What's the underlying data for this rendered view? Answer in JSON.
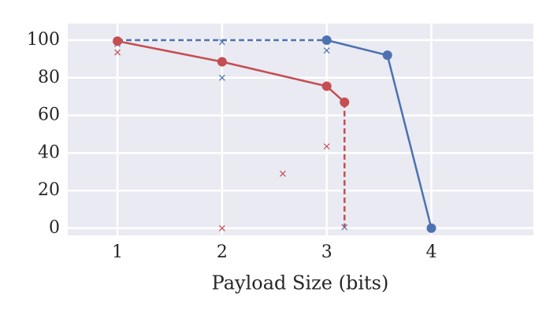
{
  "chart_data": {
    "type": "line",
    "x_label": "Payload Size (bits)",
    "xlim": [
      0.525,
      4.975
    ],
    "ylim": [
      -3.8,
      108.8
    ],
    "xticks": [
      1,
      2,
      3,
      4
    ],
    "yticks": [
      0,
      20,
      40,
      60,
      80,
      100
    ],
    "grid": true,
    "series": [
      {
        "color": "#4c72b0",
        "line": "dashed",
        "marker": "none",
        "x": [
          1,
          3
        ],
        "values": [
          100,
          100
        ]
      },
      {
        "color": "#4c72b0",
        "line": "solid",
        "marker": "circle",
        "x": [
          3,
          3.58,
          4
        ],
        "values": [
          100,
          92,
          0
        ]
      },
      {
        "color": "#4c72b0",
        "line": "none",
        "marker": "cross",
        "x": [
          1,
          2,
          2,
          3,
          3.17
        ],
        "values": [
          98,
          99,
          80,
          94.5,
          0.5
        ]
      },
      {
        "color": "#c44e52",
        "line": "solid",
        "marker": "circle",
        "x": [
          1,
          2,
          3,
          3.17
        ],
        "values": [
          99.5,
          88.5,
          75.5,
          67
        ]
      },
      {
        "color": "#c44e52",
        "line": "dashed",
        "marker": "none",
        "x": [
          3.17,
          3.17
        ],
        "values": [
          67,
          0
        ]
      },
      {
        "color": "#c44e52",
        "line": "none",
        "marker": "cross",
        "x": [
          1,
          2,
          2.58,
          3
        ],
        "values": [
          93.5,
          0,
          29,
          43.5
        ]
      }
    ]
  }
}
